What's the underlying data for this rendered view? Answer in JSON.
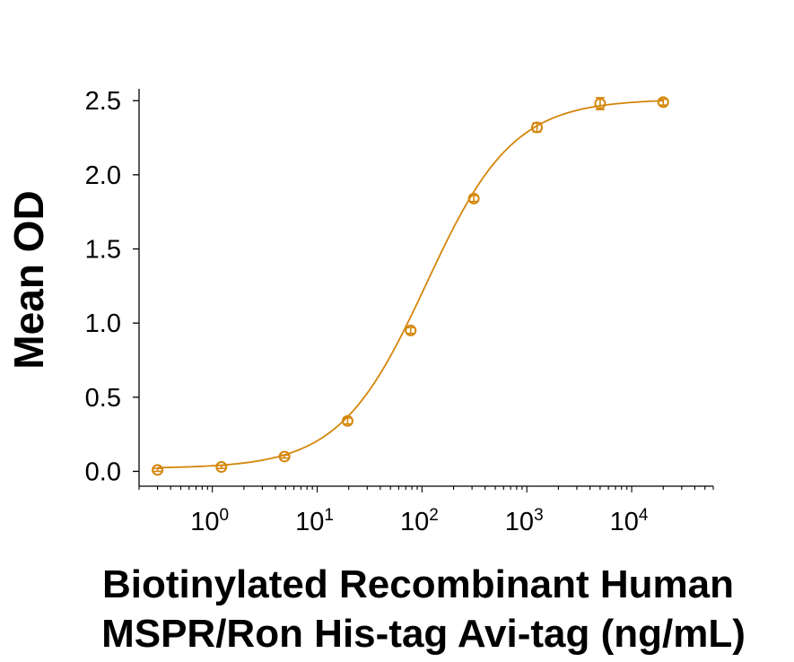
{
  "chart_data": {
    "type": "scatter",
    "title": "",
    "ylabel": "Mean OD",
    "xlabel_lines": [
      "Biotinylated Recombinant Human",
      "MSPR/Ron His-tag Avi-tag (ng/mL)"
    ],
    "x_scale": "log10",
    "xlim": [
      0.2,
      60000
    ],
    "ylim": [
      -0.1,
      2.58
    ],
    "y_ticks": [
      "0.0",
      "0.5",
      "1.0",
      "1.5",
      "2.0",
      "2.5"
    ],
    "x_ticks": [
      {
        "base": "10",
        "exp": "0"
      },
      {
        "base": "10",
        "exp": "1"
      },
      {
        "base": "10",
        "exp": "2"
      },
      {
        "base": "10",
        "exp": "3"
      },
      {
        "base": "10",
        "exp": "4"
      }
    ],
    "color": "#D4860B",
    "grid": false,
    "series": [
      {
        "x": [
          0.3,
          1.22,
          4.88,
          19.5,
          78,
          312,
          1250,
          5000,
          20000
        ],
        "y": [
          0.01,
          0.03,
          0.1,
          0.34,
          0.95,
          1.84,
          2.32,
          2.48,
          2.49
        ],
        "err": [
          0.01,
          0.01,
          0.01,
          0.02,
          0.02,
          0.02,
          0.03,
          0.04,
          0.02
        ]
      }
    ],
    "fit": {
      "model": "4PL",
      "bottom": 0.02,
      "top": 2.51,
      "ec50": 110,
      "hill": 1.05
    }
  }
}
